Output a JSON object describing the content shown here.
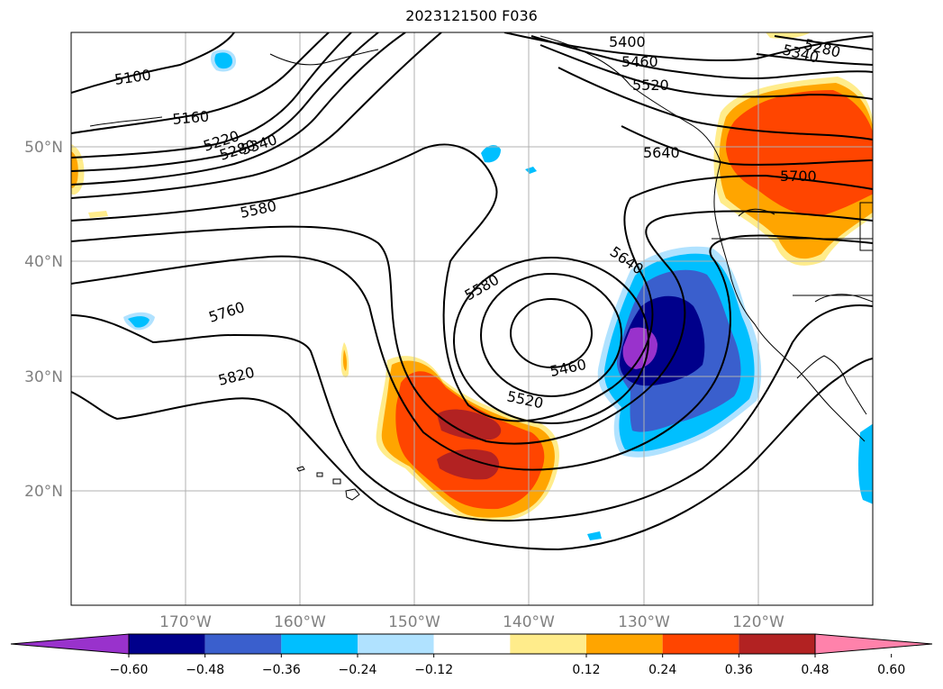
{
  "title": "2023121500 F036",
  "map": {
    "lat_labels": [
      "50°N",
      "40°N",
      "30°N",
      "20°N"
    ],
    "lon_labels": [
      "170°W",
      "160°W",
      "150°W",
      "140°W",
      "130°W",
      "120°W"
    ],
    "contour_labels": [
      "5100",
      "5160",
      "5220",
      "5280",
      "5340",
      "5580",
      "5760",
      "5820",
      "5400",
      "5460",
      "5520",
      "5640",
      "5700",
      "5280",
      "5340",
      "5580",
      "5640",
      "5460",
      "5520"
    ]
  },
  "colorbar": {
    "ticks": [
      "−0.60",
      "−0.48",
      "−0.36",
      "−0.24",
      "−0.12",
      "0.12",
      "0.24",
      "0.36",
      "0.48",
      "0.60"
    ],
    "colors": [
      "#9932CC",
      "#00008B",
      "#3A5FCD",
      "#00BFFF",
      "#B0E2FF",
      "#FFFFFF",
      "#FFEC8B",
      "#FFA500",
      "#FF4500",
      "#B22222",
      "#FF82AB"
    ]
  }
}
